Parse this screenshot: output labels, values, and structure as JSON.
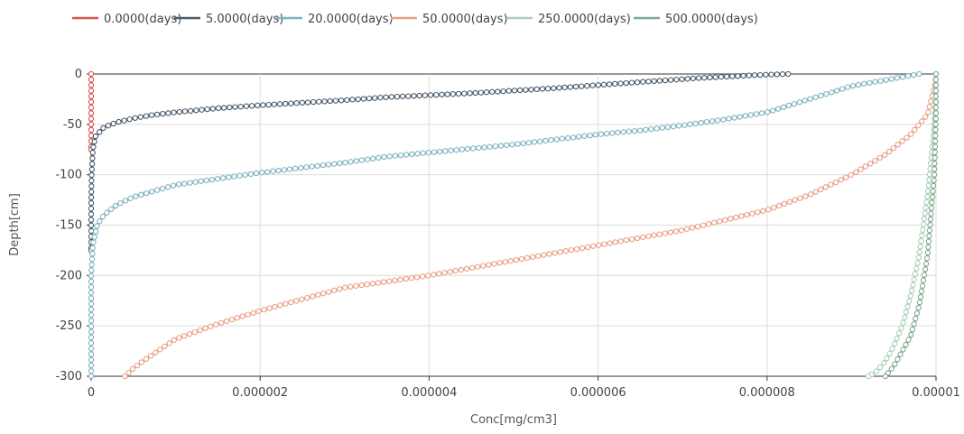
{
  "chart_data": {
    "type": "line",
    "xlabel": "Conc[mg/cm3]",
    "ylabel": "Depth[cm]",
    "xlim": [
      0,
      1e-05
    ],
    "ylim": [
      -300,
      0
    ],
    "x_ticks": [
      "0",
      "0.000002",
      "0.000004",
      "0.000006",
      "0.000008",
      "0.00001"
    ],
    "x_tick_values": [
      0,
      2e-06,
      4e-06,
      6e-06,
      8e-06,
      1e-05
    ],
    "y_ticks": [
      "0",
      "-50",
      "-100",
      "-150",
      "-200",
      "-250",
      "-300"
    ],
    "y_tick_values": [
      0,
      -50,
      -100,
      -150,
      -200,
      -250,
      -300
    ],
    "grid": true,
    "legend_position": "top",
    "series": [
      {
        "name": "0.0000(days)",
        "color": "#d9534f",
        "points": [
          [
            0,
            0
          ],
          [
            0,
            -20
          ],
          [
            0,
            -40
          ],
          [
            0,
            -60
          ],
          [
            0,
            -75
          ]
        ]
      },
      {
        "name": "5.0000(days)",
        "color": "#4a5b6b",
        "points": [
          [
            8.25e-06,
            0
          ],
          [
            7.9e-06,
            -1
          ],
          [
            7.2e-06,
            -4
          ],
          [
            6.5e-06,
            -8
          ],
          [
            6e-06,
            -11
          ],
          [
            5.5e-06,
            -14
          ],
          [
            5e-06,
            -16.5
          ],
          [
            4.5e-06,
            -19
          ],
          [
            4e-06,
            -21
          ],
          [
            3.5e-06,
            -23
          ],
          [
            3e-06,
            -26
          ],
          [
            2.5e-06,
            -28.5
          ],
          [
            2e-06,
            -31
          ],
          [
            1.5e-06,
            -34
          ],
          [
            1e-06,
            -38
          ],
          [
            7e-07,
            -41
          ],
          [
            5e-07,
            -44
          ],
          [
            3e-07,
            -48
          ],
          [
            1.5e-07,
            -53
          ],
          [
            5e-08,
            -62
          ],
          [
            2e-08,
            -75
          ],
          [
            5e-09,
            -100
          ],
          [
            0,
            -130
          ],
          [
            0,
            -175
          ]
        ]
      },
      {
        "name": "20.0000(days)",
        "color": "#7fb3c0",
        "points": [
          [
            9.8e-06,
            0
          ],
          [
            9e-06,
            -12
          ],
          [
            8.5e-06,
            -25
          ],
          [
            8e-06,
            -38
          ],
          [
            7.5e-06,
            -45
          ],
          [
            7e-06,
            -51
          ],
          [
            6.5e-06,
            -56
          ],
          [
            6e-06,
            -60
          ],
          [
            5.5e-06,
            -65
          ],
          [
            5e-06,
            -70
          ],
          [
            4.5e-06,
            -74
          ],
          [
            4e-06,
            -78
          ],
          [
            3.5e-06,
            -82
          ],
          [
            3e-06,
            -88
          ],
          [
            2.5e-06,
            -93
          ],
          [
            2e-06,
            -98
          ],
          [
            1.5e-06,
            -104
          ],
          [
            1e-06,
            -110
          ],
          [
            5e-07,
            -122
          ],
          [
            3e-07,
            -130
          ],
          [
            1.5e-07,
            -140
          ],
          [
            7e-08,
            -150
          ],
          [
            2e-08,
            -170
          ],
          [
            0,
            -200
          ],
          [
            0,
            -250
          ],
          [
            0,
            -300
          ]
        ]
      },
      {
        "name": "50.0000(days)",
        "color": "#e8a188",
        "points": [
          [
            1e-05,
            0
          ],
          [
            9.99e-06,
            -10
          ],
          [
            9.9e-06,
            -40
          ],
          [
            9.7e-06,
            -60
          ],
          [
            9.4e-06,
            -80
          ],
          [
            9e-06,
            -100
          ],
          [
            8.5e-06,
            -120
          ],
          [
            8e-06,
            -135
          ],
          [
            7e-06,
            -155
          ],
          [
            6e-06,
            -170
          ],
          [
            5e-06,
            -185
          ],
          [
            4e-06,
            -200
          ],
          [
            3e-06,
            -212
          ],
          [
            2e-06,
            -235
          ],
          [
            1.5e-06,
            -248
          ],
          [
            1e-06,
            -263
          ],
          [
            7e-07,
            -280
          ],
          [
            5e-07,
            -292
          ],
          [
            4e-07,
            -300
          ]
        ]
      },
      {
        "name": "250.0000(days)",
        "color": "#a9d1b8",
        "points": [
          [
            1e-05,
            0
          ],
          [
            1e-05,
            -20
          ],
          [
            9.97e-06,
            -60
          ],
          [
            9.9e-06,
            -120
          ],
          [
            9.8e-06,
            -180
          ],
          [
            9.7e-06,
            -220
          ],
          [
            9.6e-06,
            -250
          ],
          [
            9.5e-06,
            -270
          ],
          [
            9.4e-06,
            -285
          ],
          [
            9.3e-06,
            -295
          ],
          [
            9.2e-06,
            -300
          ]
        ]
      },
      {
        "name": "500.0000(days)",
        "color": "#7fa98f",
        "points": [
          [
            1e-05,
            0
          ],
          [
            1e-05,
            -40
          ],
          [
            9.98e-06,
            -100
          ],
          [
            9.9e-06,
            -180
          ],
          [
            9.8e-06,
            -230
          ],
          [
            9.7e-06,
            -260
          ],
          [
            9.6e-06,
            -275
          ],
          [
            9.5e-06,
            -290
          ],
          [
            9.4e-06,
            -300
          ]
        ]
      }
    ]
  }
}
